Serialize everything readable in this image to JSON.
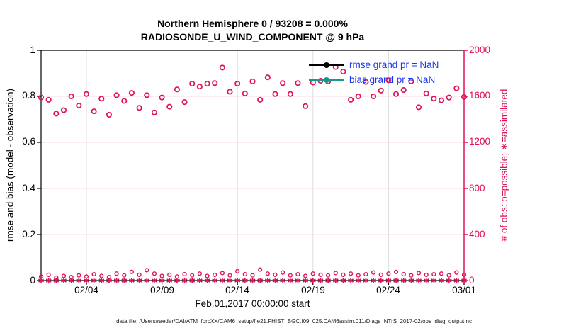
{
  "title": {
    "line1": "Northern Hemisphere 0 / 93208 = 0.000%",
    "line2": "RADIOSONDE_U_WIND_COMPONENT @ 9 hPa"
  },
  "axes": {
    "left": {
      "label": "rmse and bias (model - observation)",
      "ticks": [
        "1",
        "0.8",
        "0.6",
        "0.4",
        "0.2",
        "0"
      ],
      "tick_values": [
        1,
        0.8,
        0.6,
        0.4,
        0.2,
        0
      ],
      "range": [
        0,
        1
      ]
    },
    "right": {
      "label": "# of obs: o=possible; ∗=assimilated",
      "ticks": [
        "2000",
        "1600",
        "1200",
        "800",
        "400",
        "0"
      ],
      "tick_values": [
        2000,
        1600,
        1200,
        800,
        400,
        0
      ],
      "range": [
        0,
        2000
      ],
      "color": "#df115a"
    },
    "x": {
      "label": "Feb.01,2017 00:00:00 start",
      "ticks": [
        "02/04",
        "02/09",
        "02/14",
        "02/19",
        "02/24",
        "03/01"
      ],
      "tick_days": [
        3,
        8,
        13,
        18,
        23,
        28
      ],
      "span_days": 28
    }
  },
  "legend": [
    {
      "label": "rmse grand pr = NaN",
      "line_color": "#000000",
      "marker": "filled-circle"
    },
    {
      "label": "bias grand pr = NaN",
      "line_color": "#1a968a",
      "marker": "filled-circle"
    }
  ],
  "footer": {
    "data_file": "data file: /Users/raeder/DAI/ATM_forcXX/CAM6_setup/f.e21.FHIST_BGC.f09_025.CAM6assim.011/Diags_NTrS_2017-02/obs_diag_output.nc"
  },
  "colors": {
    "obs_count_pink": "#df115a",
    "legend_text_blue": "#1a36f2",
    "bias_teal": "#1a968a",
    "rmse_black": "#000000",
    "grid_horizontal": "#f7d9e3",
    "grid_vertical": "#dcdcdc"
  },
  "chart_data": {
    "type": "scatter",
    "title": "Northern Hemisphere 0 / 93208 = 0.000% | RADIOSONDE_U_WIND_COMPONENT @ 9 hPa",
    "xlabel": "Feb.01,2017 00:00:00 start",
    "x_start": "2017-02-01 00:00",
    "x_end": "2017-03-01 00:00",
    "bin_interval_hours": 12,
    "left_ylim": [
      0,
      1
    ],
    "right_ylim": [
      0,
      2000
    ],
    "grid": true,
    "legend_position": "upper-right-inside",
    "note": "rmse and bias curves are absent (all NaN, 0 obs assimilated); pink markers read against right axis",
    "series": [
      {
        "id": "possible",
        "name": "# of obs possible (o)",
        "marker": "o",
        "axis": "right",
        "color": "#df115a",
        "values": [
          1590,
          1570,
          1450,
          1480,
          1600,
          1520,
          1620,
          1470,
          1580,
          1440,
          1610,
          1560,
          1630,
          1500,
          1610,
          1460,
          1590,
          1510,
          1660,
          1550,
          1710,
          1685,
          1710,
          1715,
          1850,
          1640,
          1710,
          1625,
          1730,
          1570,
          1765,
          1620,
          1715,
          1620,
          1715,
          1515,
          1720,
          1735,
          1730,
          1855,
          1815,
          1570,
          1600,
          1725,
          1600,
          1650,
          1740,
          1620,
          1655,
          1730,
          1505,
          1625,
          1580,
          1565,
          1590,
          1670,
          1595
        ]
      },
      {
        "id": "secondary",
        "name": "small unlabeled circle series near zero (o)",
        "marker": "o",
        "axis": "right",
        "color": "#df115a",
        "values": [
          35,
          50,
          25,
          40,
          30,
          45,
          35,
          55,
          40,
          30,
          60,
          45,
          75,
          50,
          90,
          60,
          40,
          50,
          35,
          55,
          45,
          60,
          40,
          50,
          65,
          45,
          80,
          55,
          45,
          95,
          60,
          50,
          70,
          45,
          55,
          40,
          60,
          50,
          45,
          65,
          50,
          60,
          45,
          55,
          70,
          50,
          60,
          75,
          55,
          45,
          65,
          50,
          55,
          60,
          45,
          70,
          50
        ]
      },
      {
        "id": "assimilated",
        "name": "# of obs assimilated (∗)",
        "marker": "*",
        "axis": "right",
        "color": "#df115a",
        "values": [
          0,
          0,
          0,
          0,
          0,
          0,
          0,
          0,
          0,
          0,
          0,
          0,
          0,
          0,
          0,
          0,
          0,
          0,
          0,
          0,
          0,
          0,
          0,
          0,
          0,
          0,
          0,
          0,
          0,
          0,
          0,
          0,
          0,
          0,
          0,
          0,
          0,
          0,
          0,
          0,
          0,
          0,
          0,
          0,
          0,
          0,
          0,
          0,
          0,
          0,
          0,
          0,
          0,
          0,
          0,
          0,
          0
        ]
      }
    ]
  }
}
